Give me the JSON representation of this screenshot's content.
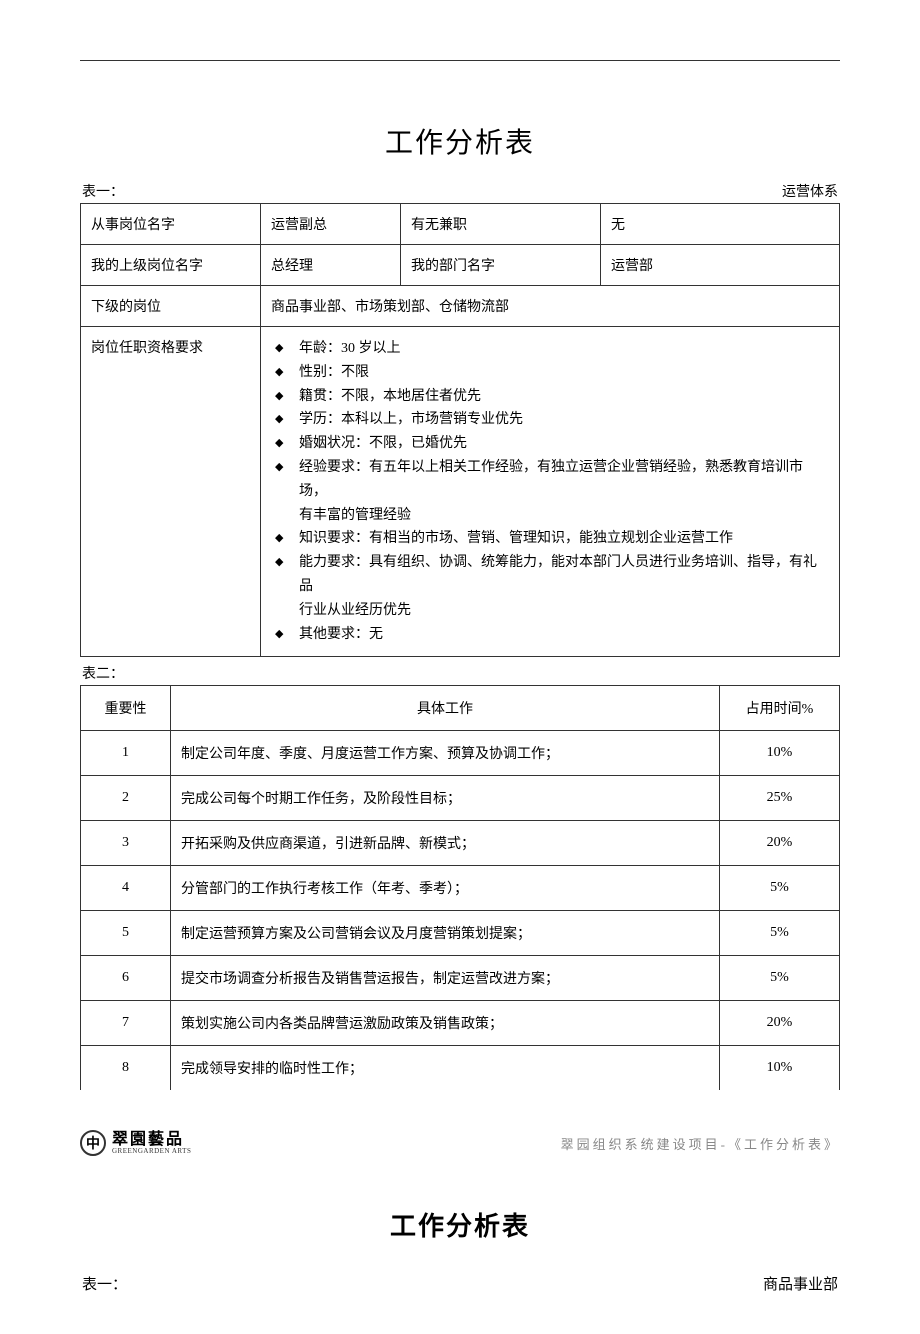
{
  "page1": {
    "main_title": "工作分析表",
    "table1_left_label": "表一：",
    "table1_right_label": "运营体系",
    "row1": {
      "label1": "从事岗位名字",
      "value1": "运营副总",
      "label2": "有无兼职",
      "value2": "无"
    },
    "row2": {
      "label1": "我的上级岗位名字",
      "value1": "总经理",
      "label2": "我的部门名字",
      "value2": "运营部"
    },
    "row3": {
      "label": "下级的岗位",
      "value": "商品事业部、市场策划部、仓储物流部"
    },
    "row4": {
      "label": "岗位任职资格要求",
      "items": [
        "年龄：30 岁以上",
        "性别：不限",
        "籍贯：不限，本地居住者优先",
        "学历：本科以上，市场营销专业优先",
        "婚姻状况：不限，已婚优先",
        "经验要求：有五年以上相关工作经验，有独立运营企业营销经验，熟悉教育培训市场，",
        "有丰富的管理经验",
        "知识要求：有相当的市场、营销、管理知识，能独立规划企业运营工作",
        "能力要求：具有组织、协调、统筹能力，能对本部门人员进行业务培训、指导，有礼品",
        "行业从业经历优先",
        "其他要求：无"
      ],
      "continuations": [
        6,
        9
      ]
    },
    "table2_label": "表二：",
    "table2": {
      "headers": [
        "重要性",
        "具体工作",
        "占用时间%"
      ],
      "rows": [
        {
          "importance": "1",
          "work": "制定公司年度、季度、月度运营工作方案、预算及协调工作；",
          "time": "10%"
        },
        {
          "importance": "2",
          "work": "完成公司每个时期工作任务，及阶段性目标；",
          "time": "25%"
        },
        {
          "importance": "3",
          "work": "开拓采购及供应商渠道，引进新品牌、新模式；",
          "time": "20%"
        },
        {
          "importance": "4",
          "work": "分管部门的工作执行考核工作（年考、季考）；",
          "time": "5%"
        },
        {
          "importance": "5",
          "work": "制定运营预算方案及公司营销会议及月度营销策划提案；",
          "time": "5%"
        },
        {
          "importance": "6",
          "work": "提交市场调查分析报告及销售营运报告，制定运营改进方案；",
          "time": "5%"
        },
        {
          "importance": "7",
          "work": "策划实施公司内各类品牌营运激励政策及销售政策；",
          "time": "20%"
        },
        {
          "importance": "8",
          "work": "完成领导安排的临时性工作；",
          "time": "10%"
        }
      ]
    }
  },
  "footer": {
    "logo_symbol": "中",
    "logo_cn": "翠園藝品",
    "logo_en": "GREENGARDEN ARTS",
    "right_text": "翠园组织系统建设项目-《工作分析表》"
  },
  "page2": {
    "main_title": "工作分析表",
    "table1_left_label": "表一：",
    "table1_right_label": "商品事业部"
  }
}
